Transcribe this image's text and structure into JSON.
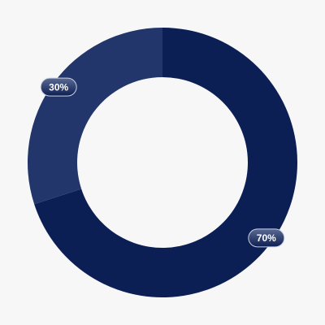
{
  "chart_data": {
    "type": "donut",
    "values": [
      70,
      30
    ],
    "value_labels": [
      "70%",
      "30%"
    ],
    "colors": [
      "#0b1f55",
      "#22366b"
    ],
    "start_angle": 0,
    "direction": "clockwise"
  }
}
